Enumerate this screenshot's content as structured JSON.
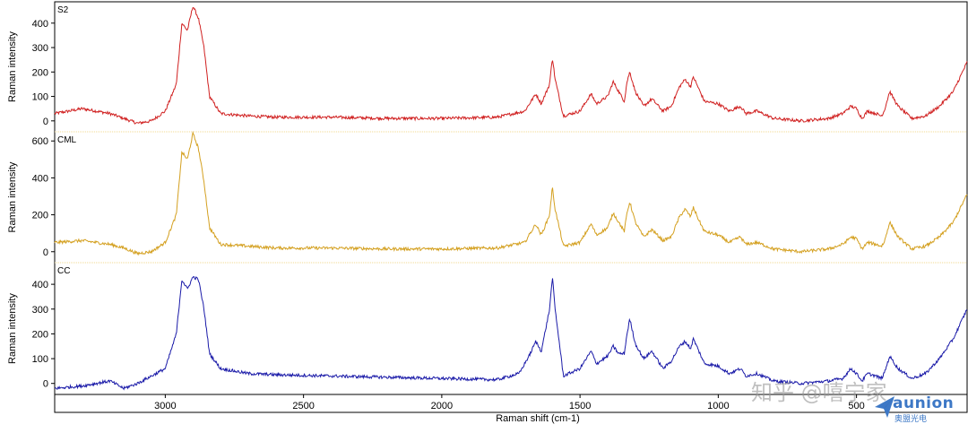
{
  "colors": {
    "S2": "#d02020",
    "CML": "#d4a020",
    "CC": "#1a1aa8",
    "axis": "#000000",
    "separator": "#f0d890"
  },
  "chart_data": [
    {
      "type": "line",
      "title": "S2",
      "xlabel": "Raman shift (cm-1)",
      "ylabel": "Raman intensity",
      "xlim": [
        3400,
        100
      ],
      "ylim": [
        -30,
        480
      ],
      "yticks": [
        0,
        100,
        200,
        300,
        400
      ],
      "series": [
        {
          "name": "S2",
          "x": [
            3400,
            3300,
            3250,
            3200,
            3150,
            3100,
            3050,
            3000,
            2960,
            2940,
            2920,
            2900,
            2880,
            2860,
            2840,
            2800,
            2700,
            2600,
            2400,
            2200,
            2000,
            1800,
            1700,
            1660,
            1640,
            1610,
            1600,
            1590,
            1560,
            1500,
            1460,
            1440,
            1400,
            1380,
            1360,
            1340,
            1330,
            1320,
            1300,
            1270,
            1240,
            1200,
            1170,
            1140,
            1120,
            1100,
            1090,
            1070,
            1050,
            1000,
            960,
            920,
            900,
            860,
            800,
            700,
            600,
            550,
            520,
            500,
            480,
            460,
            430,
            410,
            400,
            380,
            350,
            300,
            250,
            200,
            150,
            100
          ],
          "y": [
            30,
            50,
            40,
            30,
            10,
            -10,
            0,
            40,
            150,
            400,
            370,
            470,
            420,
            300,
            100,
            30,
            20,
            15,
            15,
            10,
            10,
            15,
            40,
            110,
            70,
            150,
            260,
            170,
            20,
            40,
            110,
            70,
            100,
            160,
            120,
            80,
            160,
            200,
            120,
            60,
            90,
            40,
            60,
            140,
            170,
            140,
            180,
            130,
            80,
            70,
            40,
            60,
            30,
            40,
            10,
            0,
            10,
            30,
            60,
            50,
            10,
            40,
            30,
            20,
            40,
            120,
            60,
            10,
            20,
            60,
            120,
            240
          ]
        }
      ]
    },
    {
      "type": "line",
      "title": "CML",
      "xlabel": "Raman shift (cm-1)",
      "ylabel": "Raman intensity",
      "xlim": [
        3400,
        100
      ],
      "ylim": [
        -40,
        640
      ],
      "yticks": [
        0,
        200,
        400,
        600
      ],
      "series": [
        {
          "name": "CML",
          "x": [
            3400,
            3300,
            3250,
            3200,
            3150,
            3100,
            3050,
            3000,
            2960,
            2940,
            2920,
            2900,
            2880,
            2860,
            2840,
            2800,
            2700,
            2600,
            2400,
            2200,
            2000,
            1800,
            1700,
            1660,
            1640,
            1610,
            1600,
            1590,
            1560,
            1500,
            1460,
            1440,
            1400,
            1380,
            1360,
            1340,
            1330,
            1320,
            1300,
            1270,
            1240,
            1200,
            1170,
            1140,
            1120,
            1100,
            1090,
            1070,
            1050,
            1000,
            960,
            920,
            900,
            860,
            800,
            700,
            600,
            550,
            520,
            500,
            480,
            460,
            430,
            410,
            400,
            380,
            350,
            300,
            250,
            200,
            150,
            100
          ],
          "y": [
            50,
            60,
            50,
            40,
            20,
            -10,
            0,
            50,
            200,
            540,
            500,
            640,
            560,
            380,
            130,
            40,
            30,
            20,
            20,
            15,
            15,
            20,
            50,
            150,
            90,
            200,
            350,
            230,
            30,
            50,
            150,
            90,
            130,
            210,
            160,
            110,
            210,
            270,
            160,
            80,
            120,
            60,
            80,
            190,
            230,
            190,
            240,
            170,
            110,
            90,
            50,
            80,
            40,
            50,
            15,
            0,
            15,
            40,
            80,
            70,
            15,
            50,
            40,
            30,
            50,
            160,
            80,
            15,
            30,
            80,
            160,
            310
          ]
        }
      ]
    },
    {
      "type": "line",
      "title": "CC",
      "xlabel": "Raman shift (cm-1)",
      "ylabel": "Raman intensity",
      "xlim": [
        3400,
        100
      ],
      "ylim": [
        -30,
        480
      ],
      "yticks": [
        0,
        100,
        200,
        300,
        400
      ],
      "xticks": [
        3000,
        2500,
        2000,
        1500,
        1000,
        500
      ],
      "series": [
        {
          "name": "CC",
          "x": [
            3400,
            3300,
            3250,
            3200,
            3150,
            3100,
            3050,
            3000,
            2960,
            2940,
            2920,
            2900,
            2880,
            2860,
            2840,
            2800,
            2700,
            2600,
            2400,
            2200,
            2000,
            1800,
            1720,
            1680,
            1660,
            1640,
            1610,
            1600,
            1590,
            1560,
            1500,
            1460,
            1440,
            1400,
            1380,
            1360,
            1340,
            1330,
            1320,
            1300,
            1270,
            1240,
            1200,
            1170,
            1140,
            1120,
            1100,
            1090,
            1070,
            1050,
            1000,
            960,
            920,
            900,
            860,
            800,
            700,
            600,
            550,
            520,
            500,
            480,
            460,
            430,
            410,
            400,
            380,
            350,
            300,
            250,
            200,
            150,
            100
          ],
          "y": [
            -20,
            -10,
            0,
            10,
            -20,
            0,
            30,
            60,
            200,
            420,
            380,
            430,
            420,
            300,
            120,
            60,
            40,
            35,
            30,
            25,
            20,
            15,
            40,
            120,
            170,
            130,
            300,
            430,
            300,
            30,
            60,
            130,
            80,
            110,
            150,
            120,
            120,
            200,
            260,
            160,
            100,
            130,
            60,
            90,
            150,
            170,
            140,
            180,
            130,
            80,
            70,
            40,
            60,
            30,
            40,
            10,
            0,
            10,
            20,
            60,
            40,
            10,
            40,
            30,
            20,
            40,
            110,
            60,
            20,
            40,
            100,
            180,
            300
          ]
        }
      ]
    }
  ],
  "watermark": {
    "text": "知乎 @嘻宁家",
    "brand": "aunion",
    "brand_zh": "奥盟光电"
  }
}
